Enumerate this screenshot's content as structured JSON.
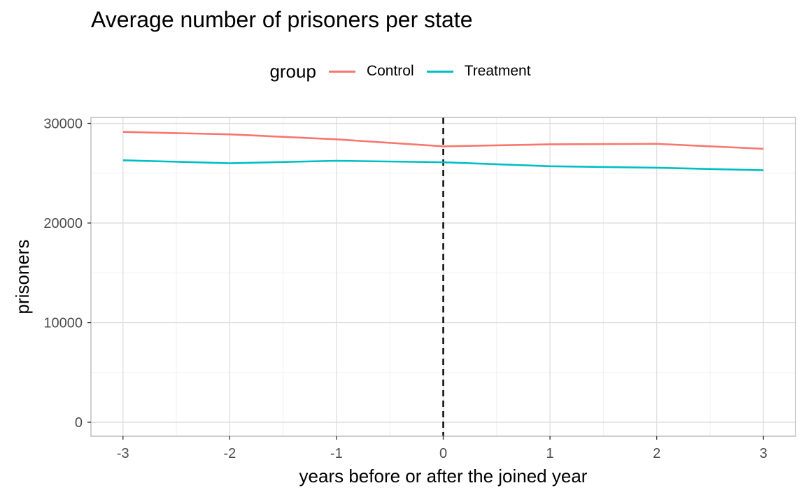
{
  "chart_data": {
    "type": "line",
    "title": "Average number of prisoners per state",
    "xlabel": "years before or after the joined year",
    "ylabel": "prisoners",
    "x": [
      -3,
      -2,
      -1,
      0,
      1,
      2,
      3
    ],
    "xlim": [
      -3.3,
      3.3
    ],
    "ylim": [
      -1400,
      30600
    ],
    "xticks": [
      -3,
      -2,
      -1,
      0,
      1,
      2,
      3
    ],
    "yticks": [
      0,
      10000,
      20000,
      30000
    ],
    "grid": true,
    "vline": {
      "x": 0,
      "style": "dashed",
      "color": "#000000"
    },
    "legend": {
      "title": "group",
      "position": "top"
    },
    "series": [
      {
        "name": "Control",
        "color": "#F8766D",
        "values": [
          29150,
          28900,
          28400,
          27700,
          27900,
          27950,
          27450
        ]
      },
      {
        "name": "Treatment",
        "color": "#00BFC4",
        "values": [
          26300,
          26000,
          26250,
          26100,
          25700,
          25550,
          25300
        ]
      }
    ]
  }
}
